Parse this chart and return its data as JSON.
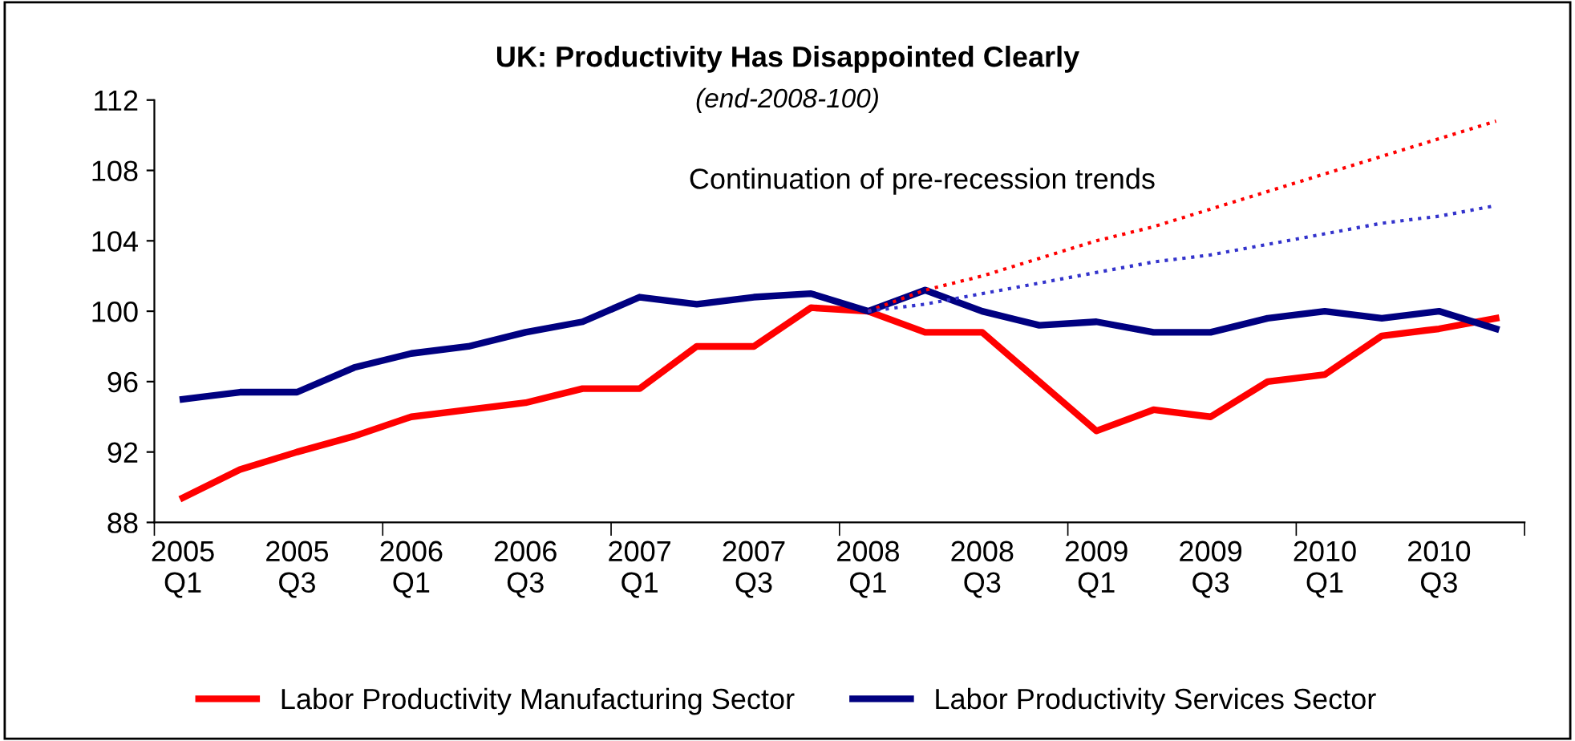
{
  "chart_data": {
    "type": "line",
    "title": "UK: Productivity Has Disappointed Clearly",
    "subtitle": "(end-2008-100)",
    "categories": [
      "2005\nQ1",
      null,
      "2005\nQ3",
      null,
      "2006\nQ1",
      null,
      "2006\nQ3",
      null,
      "2007\nQ1",
      null,
      "2007\nQ3",
      null,
      "2008\nQ1",
      null,
      "2008\nQ3",
      null,
      "2009\nQ1",
      null,
      "2009\nQ3",
      null,
      "2010\nQ1",
      null,
      "2010\nQ3",
      null
    ],
    "series": [
      {
        "name": "Labor Productivity Manufacturing Sector",
        "color": "#ff0000",
        "line_style": "solid",
        "values": [
          89.4,
          91.0,
          92.0,
          92.9,
          94.0,
          94.4,
          94.8,
          95.6,
          95.6,
          98.0,
          98.0,
          100.2,
          100.0,
          98.8,
          98.8,
          96.0,
          93.2,
          94.4,
          94.0,
          96.0,
          96.4,
          98.6,
          99.0,
          99.6
        ]
      },
      {
        "name": "Labor Productivity Services Sector",
        "color": "#000080",
        "line_style": "solid",
        "values": [
          95.0,
          95.4,
          95.4,
          96.8,
          97.6,
          98.0,
          98.8,
          99.4,
          100.8,
          100.4,
          100.8,
          101.0,
          100.0,
          101.2,
          100.0,
          99.2,
          99.4,
          98.8,
          98.8,
          99.6,
          100.0,
          99.6,
          100.0,
          99.0
        ]
      },
      {
        "color": "#ff0000",
        "line_style": "dotted",
        "values": [
          null,
          null,
          null,
          null,
          null,
          null,
          null,
          null,
          null,
          null,
          null,
          null,
          100.0,
          101.2,
          102.0,
          103.0,
          104.0,
          104.8,
          105.8,
          106.8,
          107.8,
          108.8,
          109.8,
          110.8
        ]
      },
      {
        "color": "#3333cc",
        "line_style": "dotted",
        "values": [
          null,
          null,
          null,
          null,
          null,
          null,
          null,
          null,
          null,
          null,
          null,
          null,
          100.0,
          100.4,
          101.0,
          101.6,
          102.2,
          102.8,
          103.2,
          103.8,
          104.4,
          105.0,
          105.4,
          106.0
        ]
      }
    ],
    "annotations": [
      "Continuation of pre-recession trends"
    ],
    "ylim": [
      88,
      112
    ],
    "yticks": [
      88,
      92,
      96,
      100,
      104,
      108,
      112
    ],
    "grid": false,
    "legend": "bottom"
  }
}
